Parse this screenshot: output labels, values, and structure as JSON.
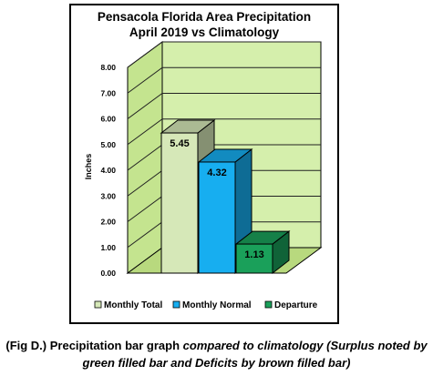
{
  "chart_data": {
    "type": "bar",
    "title": [
      "Pensacola Florida Area Precipitation",
      "April 2019 vs Climatology"
    ],
    "ylabel": "Inches",
    "xlabel": "",
    "ylim": [
      0,
      8
    ],
    "yticks": [
      "0.00",
      "1.00",
      "2.00",
      "3.00",
      "4.00",
      "5.00",
      "6.00",
      "7.00",
      "8.00"
    ],
    "grid": true,
    "legend_position": "bottom",
    "series": [
      {
        "name": "Monthly Total",
        "value": 5.45,
        "label": "5.45",
        "color": "#d6e8b8"
      },
      {
        "name": "Monthly Normal",
        "value": 4.32,
        "label": "4.32",
        "color": "#17aef0"
      },
      {
        "name": "Departure",
        "value": 1.13,
        "label": "1.13",
        "color": "#1aa05a"
      }
    ]
  },
  "caption": {
    "lead": "(Fig D.) Precipitation bar graph ",
    "rest": "compared to climatology (Surplus noted by green filled bar and Deficits by brown filled bar)"
  }
}
